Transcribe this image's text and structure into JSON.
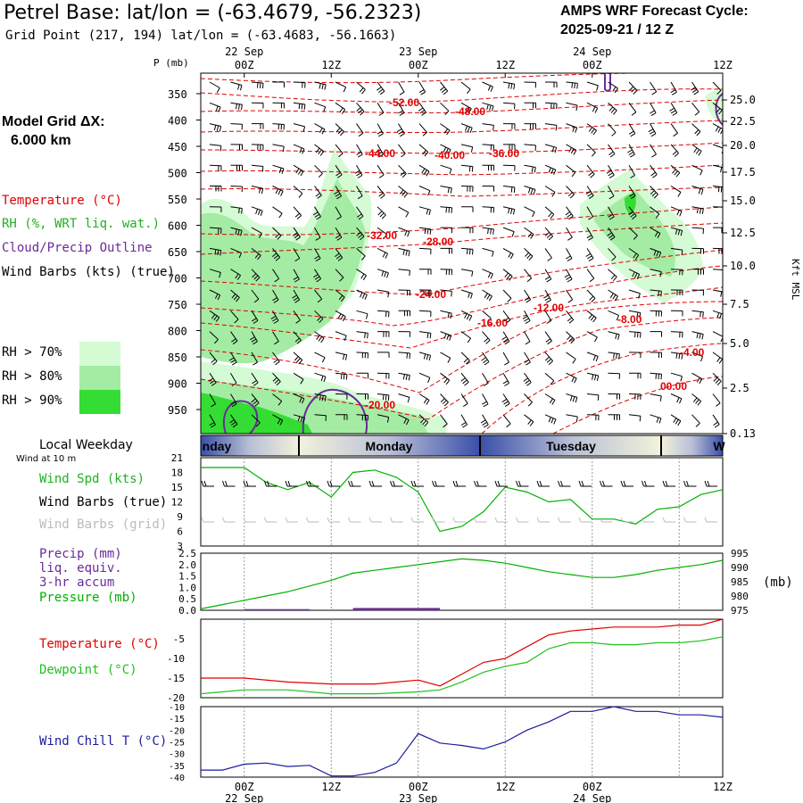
{
  "header": {
    "title": "Petrel Base:  lat/lon = (-63.4679, -56.2323)",
    "grid_point": "Grid Point (217, 194) lat/lon = (-63.4683, -56.1663)",
    "cycle_line1": "AMPS WRF Forecast Cycle:",
    "cycle_line2": "2025-09-21 / 12  Z"
  },
  "legend": {
    "model_grid_line1": "Model Grid ΔX:",
    "model_grid_line2": "6.000 km",
    "temperature": "Temperature (°C)",
    "rh": "RH (%, WRT liq. wat.)",
    "cloud": "Cloud/Precip Outline",
    "wind_barbs": "Wind Barbs (kts) (true)",
    "rh70": "RH > 70%",
    "rh80": "RH > 80%",
    "rh90": "RH > 90%",
    "local_weekday": "Local Weekday",
    "wind_10m": "Wind at 10 m",
    "wind_spd": "Wind Spd (kts)",
    "wind_barbs_true": "Wind Barbs (true)",
    "wind_barbs_grid": "Wind Barbs (grid)",
    "precip1": "Precip (mm)",
    "precip2": "liq. equiv.",
    "precip3": "3-hr accum",
    "pressure": "Pressure (mb)",
    "pressure_unit": "(mb)",
    "temp2": "Temperature (°C)",
    "dewpoint": "Dewpoint (°C)",
    "windchill": "Wind Chill T (°C)"
  },
  "colors": {
    "temp": "#e00000",
    "rh": "#20b020",
    "cloud": "#6a2a9a",
    "pressure": "#00b000",
    "dewpoint": "#20c020",
    "windchill": "#1a1aa0",
    "rh70": "#d4fbd4",
    "rh80": "#a4eca4",
    "rh90": "#33dd33"
  },
  "chart_data": [
    {
      "type": "contour",
      "name": "cross-section",
      "y_axis_label": "P (mb)",
      "y_ticks": [
        "350",
        "400",
        "450",
        "500",
        "550",
        "600",
        "650",
        "700",
        "750",
        "800",
        "850",
        "900",
        "950"
      ],
      "right_axis_label": "Kft MSL",
      "right_ticks": [
        "25.0",
        "22.5",
        "20.0",
        "17.5",
        "15.0",
        "12.5",
        "10.0",
        "7.5",
        "5.0",
        "2.5",
        "0.13"
      ],
      "top_ticks": [
        "00Z",
        "12Z",
        "00Z",
        "12Z",
        "00Z",
        "12Z"
      ],
      "top_dates": [
        "22 Sep",
        "23 Sep",
        "24 Sep"
      ],
      "temp_labels": [
        "-52.00",
        "-48.00",
        "-44.00",
        "-40.00",
        "-36.00",
        "-32.00",
        "-28.00",
        "-24.00",
        "-16.00",
        "-12.00",
        "-8.00",
        "-4.00",
        "-20.00",
        "00.00"
      ]
    },
    {
      "type": "band",
      "name": "weekday",
      "labels": [
        "nday",
        "Monday",
        "Tuesday",
        "W"
      ]
    },
    {
      "type": "line",
      "name": "wind-speed",
      "ylim": [
        3,
        21
      ],
      "y_ticks": [
        "21",
        "18",
        "15",
        "12",
        "9",
        "6",
        "3"
      ],
      "x": [
        0,
        6,
        9,
        12,
        15,
        18,
        21,
        24,
        27,
        30,
        33,
        36,
        39,
        42,
        45,
        48,
        51,
        54,
        57,
        60,
        63,
        66,
        69,
        72
      ],
      "values": [
        19,
        19,
        16,
        14.5,
        16,
        13,
        18,
        18.5,
        17,
        14,
        6,
        7,
        10,
        15,
        14,
        12,
        12.5,
        8.5,
        8.5,
        7.5,
        10.5,
        11,
        13.5,
        14.5
      ]
    },
    {
      "type": "line",
      "name": "precip-pressure",
      "precip_ylim": [
        0,
        2.5
      ],
      "precip_ticks": [
        "2.5",
        "2.0",
        "1.5",
        "1.0",
        "0.5",
        "0.0"
      ],
      "pressure_ylim": [
        975,
        995
      ],
      "pressure_ticks": [
        "995",
        "990",
        "985",
        "980",
        "975"
      ],
      "x": [
        0,
        3,
        6,
        9,
        12,
        15,
        18,
        21,
        24,
        27,
        30,
        33,
        36,
        39,
        42,
        45,
        48,
        51,
        54,
        57,
        60,
        63,
        66,
        69,
        72
      ],
      "pressure": [
        975.5,
        977,
        978.5,
        980,
        981.5,
        983.5,
        985.5,
        988,
        989,
        990,
        991,
        992,
        993,
        992.5,
        991.5,
        990,
        988.5,
        987.5,
        986.5,
        986.5,
        987.5,
        989,
        990,
        991,
        992.5
      ],
      "precip": [
        0,
        0,
        0.05,
        0.05,
        0.05,
        0,
        0,
        0.1,
        0.1,
        0.1,
        0.1,
        0,
        0,
        0,
        0,
        0,
        0,
        0,
        0,
        0,
        0,
        0,
        0,
        0,
        0
      ]
    },
    {
      "type": "line",
      "name": "temp-dewpoint",
      "ylim": [
        -20,
        0
      ],
      "y_ticks": [
        "-5",
        "-10",
        "-15",
        "-20"
      ],
      "x": [
        0,
        6,
        12,
        18,
        24,
        30,
        33,
        36,
        39,
        42,
        45,
        48,
        51,
        54,
        57,
        60,
        63,
        66,
        69,
        72
      ],
      "temperature": [
        -15,
        -15,
        -16,
        -16.5,
        -16.5,
        -15.5,
        -17,
        -14,
        -11,
        -10,
        -7,
        -4,
        -3,
        -2.5,
        -2,
        -2,
        -2,
        -1.5,
        -1.5,
        0
      ],
      "dewpoint": [
        -19,
        -18,
        -18,
        -19,
        -19,
        -18.5,
        -18,
        -16,
        -13.5,
        -12,
        -11,
        -7.5,
        -6,
        -6,
        -6.5,
        -6.5,
        -6,
        -6,
        -5.5,
        -4.5
      ]
    },
    {
      "type": "line",
      "name": "wind-chill",
      "ylim": [
        -40,
        -10
      ],
      "y_ticks": [
        "-10",
        "-15",
        "-20",
        "-25",
        "-30",
        "-35",
        "-40"
      ],
      "x": [
        0,
        3,
        6,
        9,
        12,
        15,
        18,
        21,
        24,
        27,
        30,
        33,
        36,
        39,
        42,
        45,
        48,
        51,
        54,
        57,
        60,
        63,
        66,
        69,
        72
      ],
      "values": [
        -37,
        -37,
        -34.5,
        -34,
        -35.5,
        -35,
        -39.5,
        -39.5,
        -38,
        -34,
        -21.5,
        -25.5,
        -26.5,
        -28,
        -25,
        -20,
        -16.5,
        -12,
        -12,
        -10,
        -12,
        -12,
        -13.5,
        -13.5,
        -14.5
      ]
    },
    {
      "type": "axis",
      "name": "bottom-axis",
      "ticks": [
        "00Z",
        "12Z",
        "00Z",
        "12Z",
        "00Z",
        "12Z"
      ],
      "dates": [
        "22 Sep",
        "23 Sep",
        "24 Sep"
      ]
    }
  ]
}
